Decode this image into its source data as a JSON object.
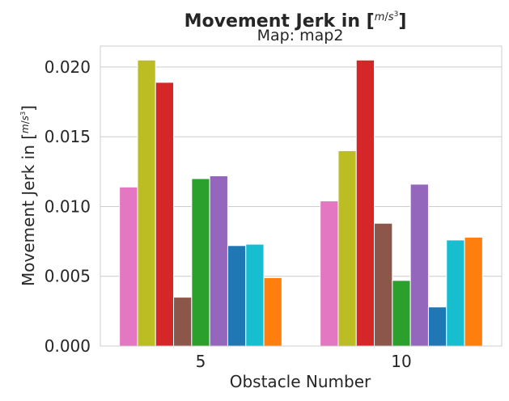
{
  "chart_data": {
    "type": "bar",
    "title": "Movement Jerk in [m/s³]",
    "title_prefix": "Movement Jerk in [",
    "title_suffix": "]",
    "subtitle": "Map: map2",
    "xlabel": "Obstacle Number",
    "ylabel_prefix": "Movement Jerk in [",
    "ylabel_suffix": "]",
    "unit_num": "m",
    "unit_den": "s",
    "unit_exp": "3",
    "categories": [
      "5",
      "10"
    ],
    "ylim": [
      0,
      0.0215
    ],
    "yticks": [
      0.0,
      0.005,
      0.01,
      0.015,
      0.02
    ],
    "ytick_labels": [
      "0.000",
      "0.005",
      "0.010",
      "0.015",
      "0.020"
    ],
    "grid": true,
    "legend": "none",
    "series": [
      {
        "color": "#e377c2",
        "values": [
          0.0114,
          0.0104
        ]
      },
      {
        "color": "#bcbd22",
        "values": [
          0.0205,
          0.014
        ]
      },
      {
        "color": "#d62728",
        "values": [
          0.0189,
          0.0205
        ]
      },
      {
        "color": "#8c564b",
        "values": [
          0.0035,
          0.0088
        ]
      },
      {
        "color": "#2ca02c",
        "values": [
          0.012,
          0.0047
        ]
      },
      {
        "color": "#9467bd",
        "values": [
          0.0122,
          0.0116
        ]
      },
      {
        "color": "#1f77b4",
        "values": [
          0.0072,
          0.0028
        ]
      },
      {
        "color": "#17becf",
        "values": [
          0.0073,
          0.0076
        ]
      },
      {
        "color": "#ff7f0e",
        "values": [
          0.0049,
          0.0078
        ]
      }
    ]
  }
}
